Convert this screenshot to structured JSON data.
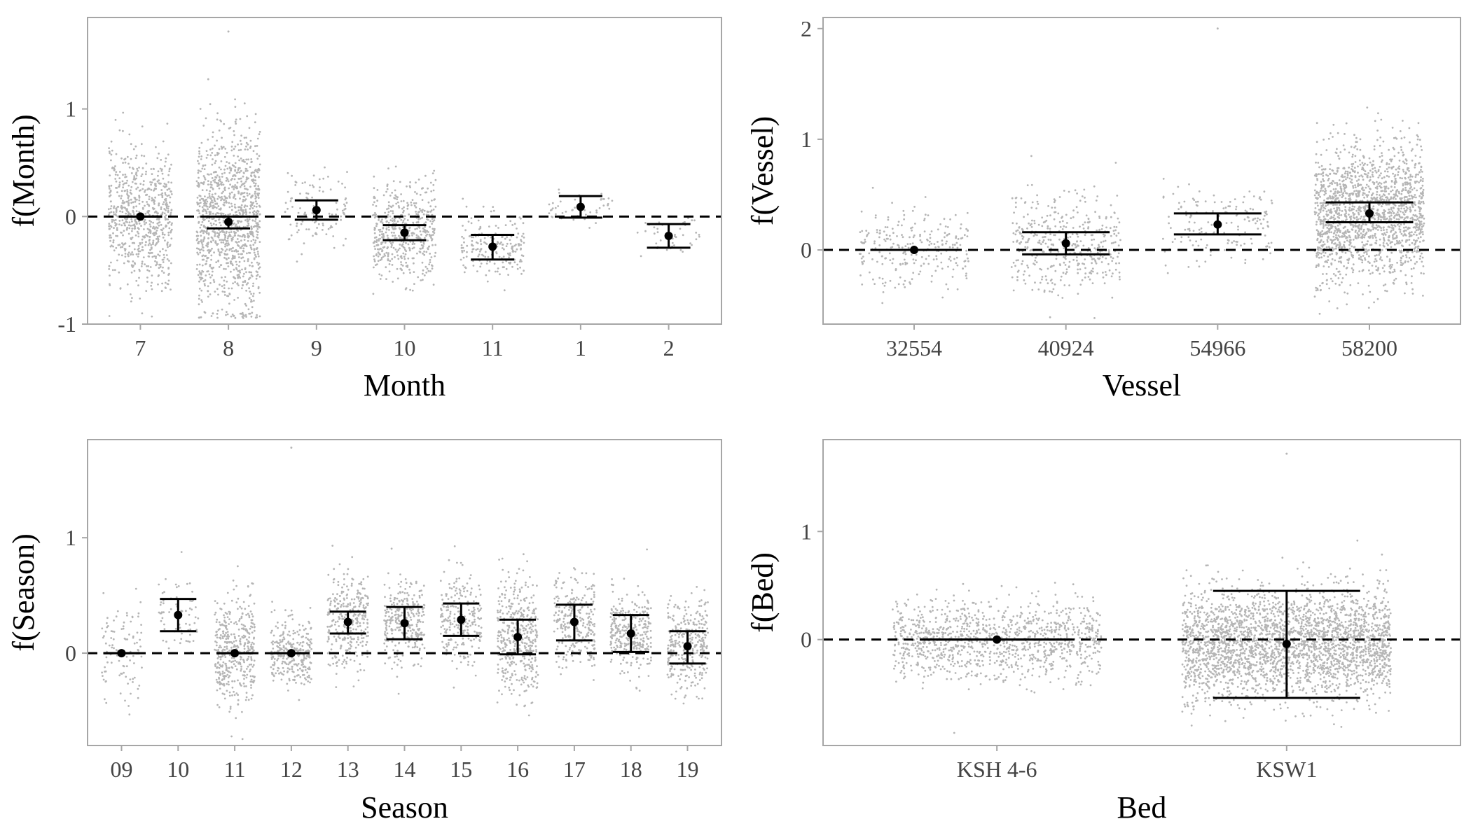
{
  "figure": {
    "colors": {
      "points": "#b5b5b5",
      "estimate": "#000000",
      "reference_line": "#000000",
      "panel_border": "#a6a6a6",
      "tick_text": "#444444"
    }
  },
  "chart_data": [
    {
      "type": "scatter",
      "xlabel": "Month",
      "ylabel": "f(Month)",
      "categories": [
        "7",
        "8",
        "9",
        "10",
        "11",
        "1",
        "2"
      ],
      "ylim": [
        -1.0,
        1.85
      ],
      "yticks": [
        -1,
        0,
        1
      ],
      "ytick_labels": [
        "-1",
        "0",
        "1"
      ],
      "reference_line": 0,
      "grid": false,
      "estimates": [
        0.0,
        -0.05,
        0.06,
        -0.15,
        -0.28,
        0.09,
        -0.18
      ],
      "ci_lower": [
        0.0,
        -0.11,
        -0.03,
        -0.22,
        -0.4,
        -0.01,
        -0.29
      ],
      "ci_upper": [
        0.0,
        0.0,
        0.15,
        -0.08,
        -0.17,
        0.19,
        -0.07
      ],
      "residual_spread": [
        0.3,
        0.42,
        0.18,
        0.22,
        0.15,
        0.07,
        0.1
      ],
      "residual_counts": [
        700,
        1100,
        110,
        500,
        200,
        45,
        45
      ],
      "outliers": [
        {
          "category": "8",
          "y": 1.72
        }
      ]
    },
    {
      "type": "scatter",
      "xlabel": "Vessel",
      "ylabel": "f(Vessel)",
      "categories": [
        "32554",
        "40924",
        "54966",
        "58200"
      ],
      "ylim": [
        -0.67,
        2.1
      ],
      "yticks": [
        0,
        1,
        2
      ],
      "ytick_labels": [
        "0",
        "1",
        "2"
      ],
      "reference_line": 0,
      "grid": false,
      "estimates": [
        0.0,
        0.06,
        0.23,
        0.33
      ],
      "ci_lower": [
        0.0,
        -0.04,
        0.14,
        0.25
      ],
      "ci_upper": [
        0.0,
        0.16,
        0.33,
        0.43
      ],
      "residual_spread": [
        0.17,
        0.22,
        0.17,
        0.3
      ],
      "residual_counts": [
        250,
        420,
        160,
        1700
      ],
      "outliers": [
        {
          "category": "54966",
          "y": 2.0
        }
      ]
    },
    {
      "type": "scatter",
      "xlabel": "Season",
      "ylabel": "f(Season)",
      "categories": [
        "09",
        "10",
        "11",
        "12",
        "13",
        "14",
        "15",
        "16",
        "17",
        "18",
        "19"
      ],
      "ylim": [
        -0.8,
        1.85
      ],
      "yticks": [
        0,
        1
      ],
      "ytick_labels": [
        "0",
        "1"
      ],
      "reference_line": 0,
      "grid": false,
      "estimates": [
        0.0,
        0.33,
        0.0,
        0.0,
        0.27,
        0.26,
        0.29,
        0.14,
        0.27,
        0.17,
        0.06
      ],
      "ci_lower": [
        0.0,
        0.19,
        0.0,
        0.0,
        0.17,
        0.12,
        0.15,
        -0.01,
        0.11,
        0.01,
        -0.09
      ],
      "ci_upper": [
        0.0,
        0.47,
        0.0,
        0.0,
        0.36,
        0.4,
        0.43,
        0.29,
        0.42,
        0.33,
        0.19
      ],
      "residual_spread": [
        0.22,
        0.18,
        0.24,
        0.15,
        0.2,
        0.18,
        0.2,
        0.25,
        0.18,
        0.17,
        0.2
      ],
      "residual_counts": [
        100,
        70,
        400,
        300,
        320,
        300,
        250,
        430,
        280,
        330,
        310
      ],
      "outliers": [
        {
          "category": "12",
          "y": 1.78
        }
      ]
    },
    {
      "type": "scatter",
      "xlabel": "Bed",
      "ylabel": "f(Bed)",
      "categories": [
        "KSH 4-6",
        "KSW1"
      ],
      "ylim": [
        -0.98,
        1.85
      ],
      "yticks": [
        0,
        1
      ],
      "ytick_labels": [
        "0",
        "1"
      ],
      "reference_line": 0,
      "grid": false,
      "estimates": [
        0.0,
        -0.04
      ],
      "ci_lower": [
        0.0,
        -0.54
      ],
      "ci_upper": [
        0.0,
        0.45
      ],
      "residual_spread": [
        0.18,
        0.25
      ],
      "residual_counts": [
        1100,
        2800
      ],
      "outliers": [
        {
          "category": "KSW1",
          "y": 1.72
        }
      ]
    }
  ]
}
